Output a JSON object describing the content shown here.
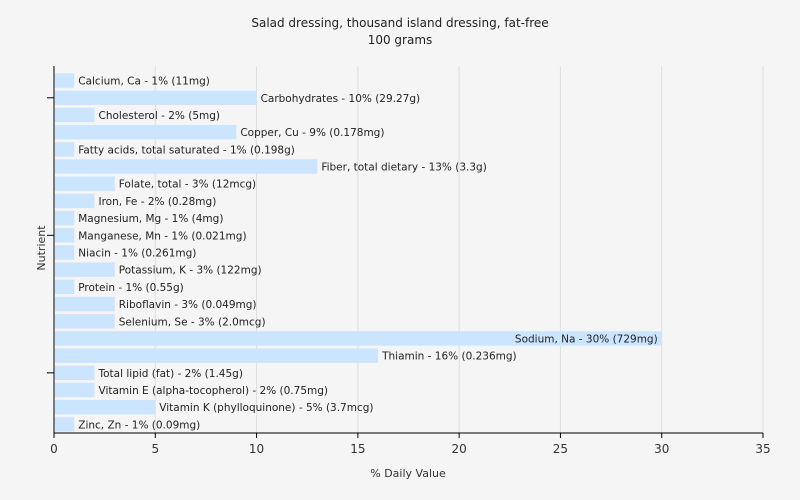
{
  "chart_data": {
    "type": "bar",
    "orientation": "horizontal",
    "title": "Salad dressing, thousand island dressing, fat-free",
    "subtitle": "100 grams",
    "xlabel": "% Daily Value",
    "ylabel": "Nutrient",
    "xlim": [
      0,
      35
    ],
    "xticks": [
      0,
      5,
      10,
      15,
      20,
      25,
      30,
      35
    ],
    "grid": true,
    "bar_color": "#cce5ff",
    "categories": [
      "Calcium, Ca",
      "Carbohydrates",
      "Cholesterol",
      "Copper, Cu",
      "Fatty acids, total saturated",
      "Fiber, total dietary",
      "Folate, total",
      "Iron, Fe",
      "Magnesium, Mg",
      "Manganese, Mn",
      "Niacin",
      "Potassium, K",
      "Protein",
      "Riboflavin",
      "Selenium, Se",
      "Sodium, Na",
      "Thiamin",
      "Total lipid (fat)",
      "Vitamin E (alpha-tocopherol)",
      "Vitamin K (phylloquinone)",
      "Zinc, Zn"
    ],
    "values": [
      1,
      10,
      2,
      9,
      1,
      13,
      3,
      2,
      1,
      1,
      1,
      3,
      1,
      3,
      3,
      30,
      16,
      2,
      2,
      5,
      1
    ],
    "labels": [
      "Calcium, Ca - 1% (11mg)",
      "Carbohydrates - 10% (29.27g)",
      "Cholesterol - 2% (5mg)",
      "Copper, Cu - 9% (0.178mg)",
      "Fatty acids, total saturated - 1% (0.198g)",
      "Fiber, total dietary - 13% (3.3g)",
      "Folate, total - 3% (12mcg)",
      "Iron, Fe - 2% (0.28mg)",
      "Magnesium, Mg - 1% (4mg)",
      "Manganese, Mn - 1% (0.021mg)",
      "Niacin - 1% (0.261mg)",
      "Potassium, K - 3% (122mg)",
      "Protein - 1% (0.55g)",
      "Riboflavin - 3% (0.049mg)",
      "Selenium, Se - 3% (2.0mcg)",
      "Sodium, Na - 30% (729mg)",
      "Thiamin - 16% (0.236mg)",
      "Total lipid (fat) - 2% (1.45g)",
      "Vitamin E (alpha-tocopherol) - 2% (0.75mg)",
      "Vitamin K (phylloquinone) - 5% (3.7mcg)",
      "Zinc, Zn - 1% (0.09mg)"
    ]
  }
}
